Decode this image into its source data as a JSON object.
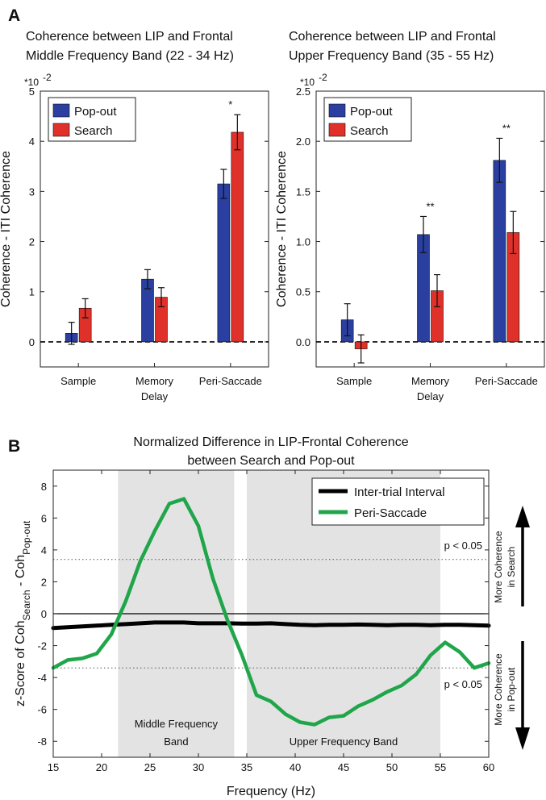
{
  "panels": {
    "a_label": "A",
    "b_label": "B"
  },
  "chart_data": [
    {
      "id": "a1",
      "type": "bar",
      "title_lines": [
        "Coherence between LIP and Frontal",
        "Middle Frequency Band (22 - 34 Hz)"
      ],
      "exponent_label": "*10",
      "exponent_power": "-2",
      "ylabel": "Coherence - ITI Coherence",
      "ylim": [
        -0.5,
        5
      ],
      "yticks": [
        {
          "v": 0,
          "label": "0"
        },
        {
          "v": 1,
          "label": "1"
        },
        {
          "v": 2,
          "label": "2"
        },
        {
          "v": 3,
          "label": "3"
        },
        {
          "v": 4,
          "label": "4"
        },
        {
          "v": 5,
          "label": "5"
        }
      ],
      "categories": [
        [
          "Sample"
        ],
        [
          "Memory",
          "Delay"
        ],
        [
          "Peri-Saccade"
        ]
      ],
      "series": [
        {
          "name": "Pop-out",
          "color": "#2a3fa0",
          "values": [
            0.17,
            1.25,
            3.15
          ],
          "errors": [
            0.22,
            0.19,
            0.29
          ]
        },
        {
          "name": "Search",
          "color": "#e0302a",
          "values": [
            0.67,
            0.89,
            4.18
          ],
          "errors": [
            0.19,
            0.19,
            0.35
          ]
        }
      ],
      "significance": [
        "",
        "",
        "*"
      ]
    },
    {
      "id": "a2",
      "type": "bar",
      "title_lines": [
        "Coherence between LIP and Frontal",
        "Upper Frequency Band (35 - 55 Hz)"
      ],
      "exponent_label": "*10",
      "exponent_power": "-2",
      "ylabel": "Coherence - ITI Coherence",
      "ylim": [
        -0.25,
        2.5
      ],
      "yticks": [
        {
          "v": 0,
          "label": "0.0"
        },
        {
          "v": 0.5,
          "label": "0.5"
        },
        {
          "v": 1,
          "label": "1.0"
        },
        {
          "v": 1.5,
          "label": "1.5"
        },
        {
          "v": 2,
          "label": "2.0"
        },
        {
          "v": 2.5,
          "label": "2.5"
        }
      ],
      "categories": [
        [
          "Sample"
        ],
        [
          "Memory",
          "Delay"
        ],
        [
          "Peri-Saccade"
        ]
      ],
      "series": [
        {
          "name": "Pop-out",
          "color": "#2a3fa0",
          "values": [
            0.22,
            1.07,
            1.81
          ],
          "errors": [
            0.16,
            0.18,
            0.22
          ]
        },
        {
          "name": "Search",
          "color": "#e0302a",
          "values": [
            -0.07,
            0.51,
            1.09
          ],
          "errors": [
            0.14,
            0.16,
            0.21
          ]
        }
      ],
      "significance": [
        "",
        "**",
        "**"
      ]
    },
    {
      "id": "b",
      "type": "line",
      "title_lines": [
        "Normalized Difference in LIP-Frontal Coherence",
        "between Search and Pop-out"
      ],
      "xlabel": "Frequency (Hz)",
      "ylabel_parts": {
        "prefix": "z-Score of Coh",
        "sub1": "Search",
        "mid": " - Coh",
        "sub2": "Pop-out"
      },
      "xlim": [
        15,
        60
      ],
      "ylim": [
        -9,
        9
      ],
      "xticks": [
        15,
        20,
        25,
        30,
        35,
        40,
        45,
        50,
        55,
        60
      ],
      "yticks": [
        -8,
        -6,
        -4,
        -2,
        0,
        2,
        4,
        6,
        8
      ],
      "shaded_bands": [
        {
          "x0": 21.7,
          "x1": 33.7,
          "label_lines": [
            "Middle Frequency",
            "Band"
          ]
        },
        {
          "x0": 35,
          "x1": 55,
          "label_lines": [
            "Upper Frequency Band"
          ]
        }
      ],
      "threshold_lines": [
        3.4,
        -3.4
      ],
      "threshold_label": "p < 0.05",
      "series": [
        {
          "name": "Inter-trial Interval",
          "color": "#000000",
          "x": [
            15,
            16.5,
            18,
            19.5,
            21,
            22.5,
            24,
            25.5,
            27,
            28.5,
            30,
            31.5,
            33,
            34.5,
            36,
            37.5,
            39,
            40.5,
            42,
            43.5,
            45,
            46.5,
            48,
            49.5,
            51,
            52.5,
            54,
            55.5,
            57,
            58.5,
            60
          ],
          "y": [
            -0.9,
            -0.85,
            -0.8,
            -0.75,
            -0.7,
            -0.65,
            -0.6,
            -0.55,
            -0.55,
            -0.55,
            -0.6,
            -0.6,
            -0.6,
            -0.62,
            -0.62,
            -0.6,
            -0.65,
            -0.7,
            -0.72,
            -0.7,
            -0.7,
            -0.68,
            -0.7,
            -0.72,
            -0.7,
            -0.7,
            -0.72,
            -0.7,
            -0.7,
            -0.72,
            -0.75
          ]
        },
        {
          "name": "Peri-Saccade",
          "color": "#1fa64a",
          "x": [
            15,
            16.5,
            18,
            19.5,
            21,
            22.5,
            24,
            25.5,
            27,
            28.5,
            30,
            31.5,
            33,
            34.5,
            36,
            37.5,
            39,
            40.5,
            42,
            43.5,
            45,
            46.5,
            48,
            49.5,
            51,
            52.5,
            54,
            55.5,
            57,
            58.5,
            60
          ],
          "y": [
            -3.4,
            -2.9,
            -2.8,
            -2.5,
            -1.3,
            0.8,
            3.3,
            5.2,
            6.9,
            7.2,
            5.5,
            2.2,
            -0.4,
            -2.6,
            -5.1,
            -5.5,
            -6.3,
            -6.8,
            -6.95,
            -6.5,
            -6.4,
            -5.8,
            -5.4,
            -4.9,
            -4.5,
            -3.8,
            -2.6,
            -1.8,
            -2.4,
            -3.4,
            -3.1
          ]
        }
      ],
      "right_annotations": {
        "up_lines": [
          "More Coherence",
          "in Search"
        ],
        "down_lines": [
          "More Coherence",
          "in Pop-out"
        ]
      }
    }
  ]
}
